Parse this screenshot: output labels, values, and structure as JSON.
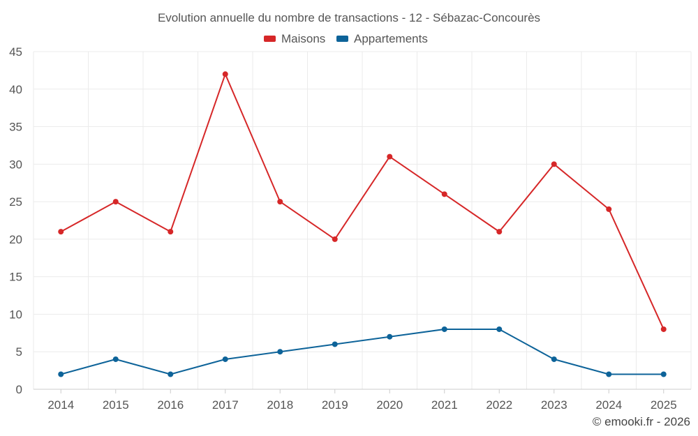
{
  "chart_data": {
    "type": "line",
    "title": "Evolution annuelle du nombre de transactions - 12 - Sébazac-Concourès",
    "categories": [
      "2014",
      "2015",
      "2016",
      "2017",
      "2018",
      "2019",
      "2020",
      "2021",
      "2022",
      "2023",
      "2024",
      "2025"
    ],
    "series": [
      {
        "name": "Maisons",
        "color": "#d62728",
        "values": [
          21,
          25,
          21,
          42,
          25,
          20,
          31,
          26,
          21,
          30,
          24,
          8
        ]
      },
      {
        "name": "Appartements",
        "color": "#0d6399",
        "values": [
          2,
          4,
          2,
          4,
          5,
          6,
          7,
          8,
          8,
          4,
          2,
          2
        ]
      }
    ],
    "ylim": [
      0,
      45
    ],
    "yticks": [
      "0",
      "5",
      "10",
      "15",
      "20",
      "25",
      "30",
      "35",
      "40",
      "45"
    ],
    "grid": true,
    "legend_position": "top-center",
    "xlabel": "",
    "ylabel": ""
  },
  "credit": "© emooki.fr - 2026"
}
